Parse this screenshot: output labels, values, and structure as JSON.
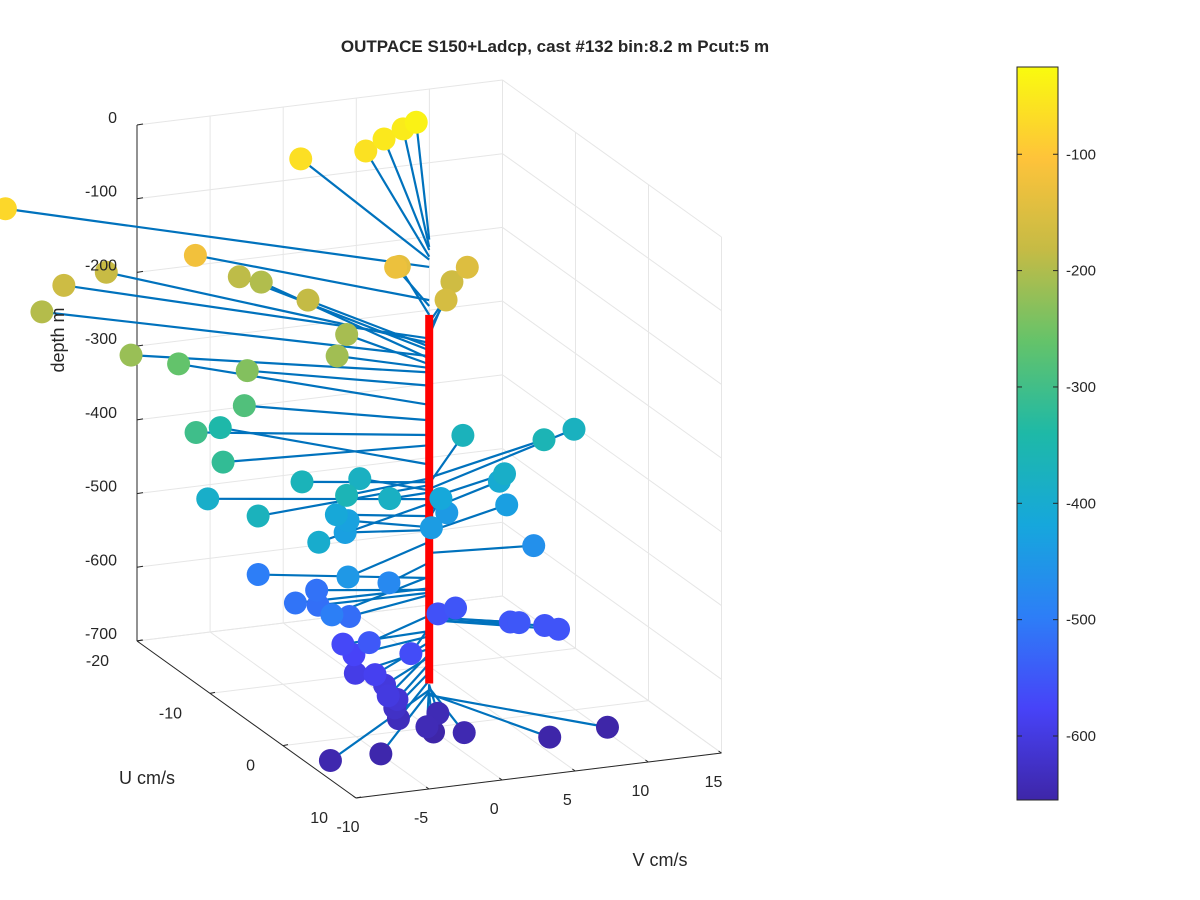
{
  "chart_data": {
    "type": "scatter",
    "title": "OUTPACE S150+Ladcp, cast #132 bin:8.2 m  Pcut:5 m",
    "xlabel": "V cm/s",
    "ylabel": "U cm/s",
    "zlabel": "depth m",
    "xlim": [
      -10,
      15
    ],
    "ylim": [
      -20,
      10
    ],
    "zlim": [
      -700,
      0
    ],
    "x_ticks": [
      "-10",
      "-5",
      "0",
      "5",
      "10",
      "15"
    ],
    "y_ticks": [
      "-20",
      "-10",
      "0",
      "10"
    ],
    "z_ticks": [
      "0",
      "-100",
      "-200",
      "-300",
      "-400",
      "-500",
      "-600",
      "-700"
    ],
    "colorbar": {
      "colormap": "parula",
      "range": [
        -655,
        -25
      ],
      "ticks": [
        "-100",
        "-200",
        "-300",
        "-400",
        "-500",
        "-600"
      ]
    },
    "reference_line": {
      "color": "#ff0000",
      "depth_range": [
        -640,
        -140
      ]
    },
    "grid": true,
    "line_color": "#0072bd",
    "points": [
      {
        "v": 8.8,
        "u": -19.4,
        "depth": -38
      },
      {
        "v": 8.1,
        "u": -19.8,
        "depth": -48
      },
      {
        "v": 6.4,
        "u": -19.0,
        "depth": -52
      },
      {
        "v": 4.9,
        "u": -18.5,
        "depth": -61
      },
      {
        "v": 0.7,
        "u": -19.0,
        "depth": -65
      },
      {
        "v": -20.0,
        "u": -18.0,
        "depth": -75
      },
      {
        "v": -10.0,
        "u": -12.0,
        "depth": -120
      },
      {
        "v": 1.2,
        "u": -7.0,
        "depth": -128
      },
      {
        "v": 2.2,
        "u": -8.5,
        "depth": -140
      },
      {
        "v": 6.7,
        "u": -8.2,
        "depth": -150
      },
      {
        "v": 3.4,
        "u": -4.5,
        "depth": -160
      },
      {
        "v": 5.7,
        "u": -8.3,
        "depth": -168
      },
      {
        "v": -17.0,
        "u": -16.0,
        "depth": -172
      },
      {
        "v": -13.1,
        "u": -18.0,
        "depth": -178
      },
      {
        "v": -3.3,
        "u": -10.0,
        "depth": -183
      },
      {
        "v": -5.1,
        "u": -15.8,
        "depth": -188
      },
      {
        "v": -19.0,
        "u": -15.0,
        "depth": -196
      },
      {
        "v": -3.6,
        "u": -15.8,
        "depth": -199
      },
      {
        "v": -2.4,
        "u": -6.5,
        "depth": -207
      },
      {
        "v": -4.4,
        "u": -3.8,
        "depth": -212
      },
      {
        "v": -16.0,
        "u": -8.8,
        "depth": -218
      },
      {
        "v": -9.4,
        "u": -6.1,
        "depth": -236
      },
      {
        "v": -11.3,
        "u": -11.7,
        "depth": -262
      },
      {
        "v": -9.6,
        "u": -6.1,
        "depth": -283
      },
      {
        "v": -13.4,
        "u": -5.1,
        "depth": -303
      },
      {
        "v": -13.4,
        "u": -1.4,
        "depth": -317
      },
      {
        "v": -9.2,
        "u": -10.2,
        "depth": -343
      },
      {
        "v": 9.8,
        "u": -3.9,
        "depth": -361
      },
      {
        "v": -6.2,
        "u": 1.1,
        "depth": -362
      },
      {
        "v": -7.4,
        "u": -2.6,
        "depth": -367
      },
      {
        "v": 5.9,
        "u": -7.2,
        "depth": -369
      },
      {
        "v": -12.5,
        "u": 1.6,
        "depth": -371
      },
      {
        "v": 13.3,
        "u": -6.8,
        "depth": -376
      },
      {
        "v": -3.1,
        "u": -3.3,
        "depth": -378
      },
      {
        "v": -2.8,
        "u": 0.2,
        "depth": -381
      },
      {
        "v": 6.4,
        "u": -2.5,
        "depth": -389
      },
      {
        "v": -12.9,
        "u": -4.5,
        "depth": -390
      },
      {
        "v": -9.6,
        "u": 4.1,
        "depth": -396
      },
      {
        "v": 6.4,
        "u": -3.2,
        "depth": -404
      },
      {
        "v": -5.3,
        "u": -2.1,
        "depth": -413
      },
      {
        "v": 2.3,
        "u": -3.0,
        "depth": -416
      },
      {
        "v": -4.2,
        "u": -2.7,
        "depth": -428
      },
      {
        "v": -5.1,
        "u": -1.3,
        "depth": -432
      },
      {
        "v": 6.7,
        "u": -2.8,
        "depth": -434
      },
      {
        "v": 0.8,
        "u": -1.3,
        "depth": -440
      },
      {
        "v": 3.1,
        "u": -3.8,
        "depth": -443
      },
      {
        "v": -7.6,
        "u": 4.1,
        "depth": -448
      },
      {
        "v": 6.7,
        "u": 0.9,
        "depth": -463
      },
      {
        "v": -4.0,
        "u": 2.5,
        "depth": -476
      },
      {
        "v": -8.8,
        "u": 4.3,
        "depth": -495
      },
      {
        "v": -9.7,
        "u": -4.0,
        "depth": -497
      },
      {
        "v": -9.0,
        "u": -0.3,
        "depth": -511
      },
      {
        "v": -6.6,
        "u": -2.2,
        "depth": -513
      },
      {
        "v": -7.5,
        "u": -0.2,
        "depth": -517
      },
      {
        "v": -6.4,
        "u": 1.9,
        "depth": -520
      },
      {
        "v": -5.7,
        "u": 3.2,
        "depth": -548
      },
      {
        "v": 4.8,
        "u": 2.7,
        "depth": -550
      },
      {
        "v": 4.4,
        "u": 2.3,
        "depth": -551
      },
      {
        "v": 2.4,
        "u": -1.2,
        "depth": -552
      },
      {
        "v": 6.3,
        "u": 3.2,
        "depth": -554
      },
      {
        "v": 6.8,
        "u": 4.1,
        "depth": -554
      },
      {
        "v": 1.2,
        "u": -1.2,
        "depth": -557
      },
      {
        "v": -3.2,
        "u": 3.9,
        "depth": -564
      },
      {
        "v": -6.1,
        "u": 0.4,
        "depth": -569
      },
      {
        "v": -5.9,
        "u": 1.5,
        "depth": -576
      },
      {
        "v": -5.8,
        "u": 4.2,
        "depth": -584
      },
      {
        "v": -6.3,
        "u": 2.5,
        "depth": -593
      },
      {
        "v": -5.8,
        "u": 6.0,
        "depth": -600
      },
      {
        "v": -4.9,
        "u": 3.7,
        "depth": -604
      },
      {
        "v": -4.8,
        "u": 5.2,
        "depth": -613
      },
      {
        "v": -4.9,
        "u": 5.1,
        "depth": -625
      },
      {
        "v": -4.9,
        "u": 5.6,
        "depth": -636
      },
      {
        "v": -3.6,
        "u": 6.9,
        "depth": -641
      },
      {
        "v": -1.8,
        "u": 4.8,
        "depth": -642
      },
      {
        "v": -1.6,
        "u": 8.0,
        "depth": -646
      },
      {
        "v": -11.5,
        "u": 9.5,
        "depth": -649
      },
      {
        "v": -7.9,
        "u": 9.2,
        "depth": -651
      },
      {
        "v": -2.8,
        "u": 6.2,
        "depth": -655
      },
      {
        "v": 3.5,
        "u": 9.5,
        "depth": -654
      },
      {
        "v": 7.8,
        "u": 8.8,
        "depth": -656
      }
    ]
  }
}
